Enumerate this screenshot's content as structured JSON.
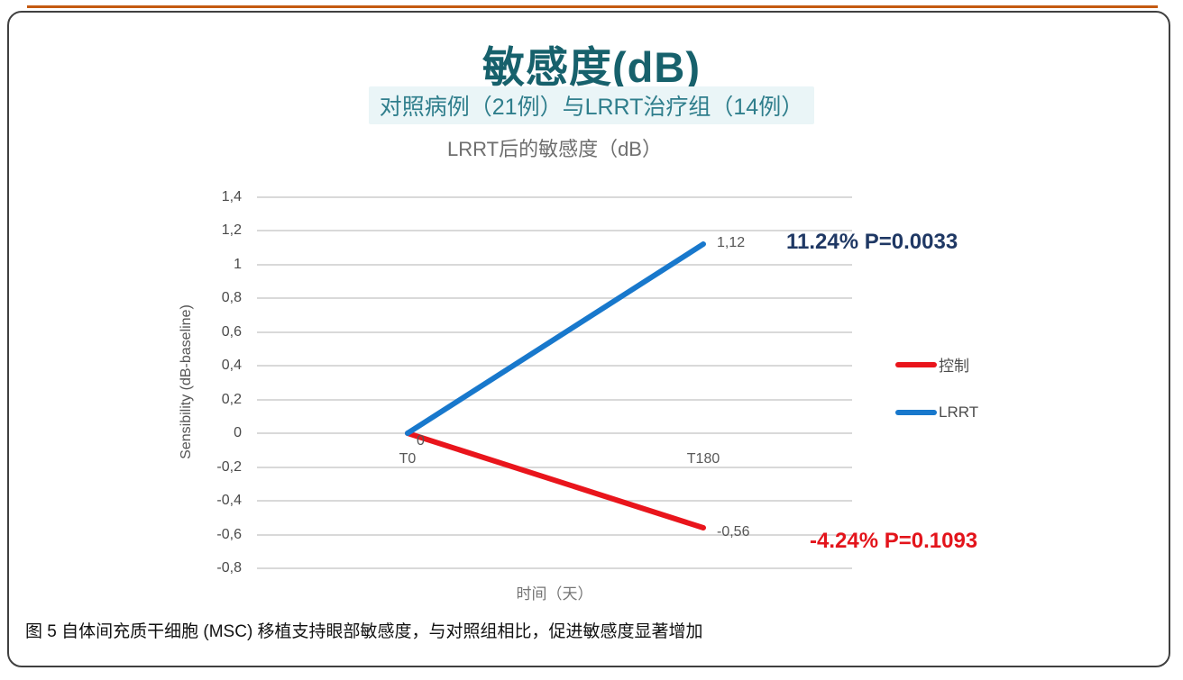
{
  "colors": {
    "top_accent": "#C45A11",
    "frame_border": "#404040",
    "title": "#17616C",
    "subtitle": "#2F7E8C",
    "subtitle_bg": "#EAF5F7",
    "chart_title": "#6E6E6E",
    "gridline": "#D9D9D9"
  },
  "header": {
    "title": "敏感度(dB)",
    "subtitle": "对照病例（21例）与LRRT治疗组（14例）",
    "chart_title": "LRRT后的敏感度（dB）"
  },
  "chart_data": {
    "type": "line",
    "title": "LRRT后的敏感度（dB）",
    "categories": [
      "T0",
      "T180"
    ],
    "series": [
      {
        "name": "控制",
        "color": "#E9151C",
        "values": [
          0,
          -0.56
        ],
        "point_labels": [
          "0",
          "-0,56"
        ]
      },
      {
        "name": "LRRT",
        "color": "#1878CC",
        "values": [
          0,
          1.12
        ],
        "point_labels": [
          "0",
          "1,12"
        ]
      }
    ],
    "xlabel": "时间（天）",
    "ylabel": "Sensibility (dB-baseline)",
    "ylim": [
      -0.8,
      1.4
    ],
    "ytick_step": 0.2,
    "yticks": [
      "1,4",
      "1,2",
      "1",
      "0,8",
      "0,6",
      "0,4",
      "0,2",
      "0",
      "-0,2",
      "-0,4",
      "-0,6",
      "-0,8"
    ],
    "grid": true,
    "legend_position": "right",
    "legend": [
      "控制",
      "LRRT"
    ],
    "annotations": [
      {
        "text": "11.24% P=0.0033",
        "color": "#1F3864",
        "series": "LRRT"
      },
      {
        "text": "-4.24% P=0.1093",
        "color": "#E3141B",
        "series": "控制"
      }
    ]
  },
  "caption": "图 5 自体间充质干细胞 (MSC) 移植支持眼部敏感度，与对照组相比，促进敏感度显著增加"
}
